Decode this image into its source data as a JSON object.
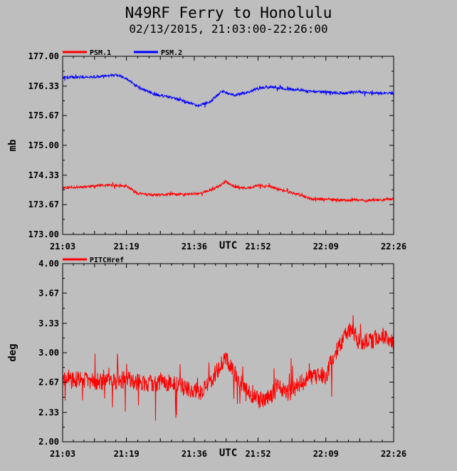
{
  "title": "N49RF Ferry to Honolulu",
  "subtitle": "02/13/2015, 21:03:00-22:26:00",
  "colors": {
    "background": "#bebebe",
    "psm1": "#ff0000",
    "psm2": "#0000ff",
    "pitch": "#ff0000",
    "axes": "#000000"
  },
  "chart_data": [
    {
      "type": "line",
      "xlabel": "UTC",
      "ylabel": "mb",
      "ylim": [
        173.0,
        177.0
      ],
      "yticks": [
        "173.00",
        "173.67",
        "174.33",
        "175.00",
        "175.67",
        "176.33",
        "177.00"
      ],
      "xticks": [
        "21:03",
        "21:19",
        "21:36",
        "21:52",
        "22:09",
        "22:26"
      ],
      "legend_placement": "top-left",
      "series": [
        {
          "name": "PSM.1",
          "x": [
            "21:03",
            "21:08",
            "21:13",
            "21:17",
            "21:19",
            "21:22",
            "21:26",
            "21:30",
            "21:34",
            "21:38",
            "21:41",
            "21:44",
            "21:46",
            "21:49",
            "21:52",
            "21:55",
            "21:59",
            "22:02",
            "22:06",
            "22:09",
            "22:13",
            "22:17",
            "22:21",
            "22:26"
          ],
          "values": [
            174.05,
            174.07,
            174.1,
            174.1,
            174.08,
            173.92,
            173.88,
            173.9,
            173.9,
            173.93,
            174.03,
            174.18,
            174.08,
            174.03,
            174.1,
            174.07,
            173.97,
            173.9,
            173.79,
            173.79,
            173.77,
            173.77,
            173.77,
            173.79
          ]
        },
        {
          "name": "PSM.2",
          "x": [
            "21:03",
            "21:08",
            "21:13",
            "21:17",
            "21:19",
            "21:22",
            "21:26",
            "21:30",
            "21:34",
            "21:37",
            "21:40",
            "21:43",
            "21:46",
            "21:49",
            "21:52",
            "21:55",
            "21:59",
            "22:02",
            "22:06",
            "22:09",
            "22:13",
            "22:17",
            "22:21",
            "22:26"
          ],
          "values": [
            176.53,
            176.53,
            176.55,
            176.58,
            176.5,
            176.3,
            176.15,
            176.08,
            175.98,
            175.88,
            175.98,
            176.22,
            176.12,
            176.18,
            176.28,
            176.32,
            176.27,
            176.25,
            176.2,
            176.2,
            176.17,
            176.2,
            176.17,
            176.17
          ]
        }
      ]
    },
    {
      "type": "line",
      "xlabel": "UTC",
      "ylabel": "deg",
      "ylim": [
        2.0,
        4.0
      ],
      "yticks": [
        "2.00",
        "2.33",
        "2.67",
        "3.00",
        "3.33",
        "3.67",
        "4.00"
      ],
      "xticks": [
        "21:03",
        "21:19",
        "21:36",
        "21:52",
        "22:09",
        "22:26"
      ],
      "legend_placement": "top-left",
      "series": [
        {
          "name": "PITCHref",
          "x": [
            "21:03",
            "21:08",
            "21:13",
            "21:19",
            "21:24",
            "21:30",
            "21:34",
            "21:38",
            "21:41",
            "21:44",
            "21:47",
            "21:50",
            "21:53",
            "21:57",
            "22:00",
            "22:04",
            "22:09",
            "22:12",
            "22:15",
            "22:18",
            "22:21",
            "22:24",
            "22:26"
          ],
          "values": [
            2.68,
            2.7,
            2.67,
            2.7,
            2.65,
            2.67,
            2.6,
            2.55,
            2.75,
            2.95,
            2.7,
            2.55,
            2.45,
            2.6,
            2.55,
            2.7,
            2.75,
            3.05,
            3.25,
            3.12,
            3.15,
            3.2,
            3.1
          ]
        }
      ]
    }
  ]
}
